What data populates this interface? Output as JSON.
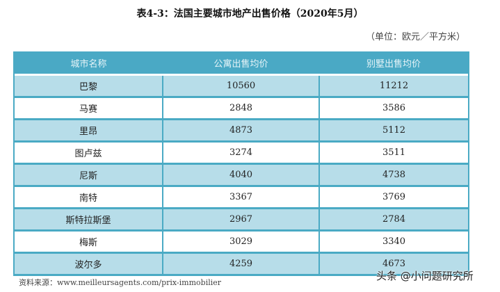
{
  "title": "表4-3：法国主要城市地产出售价格（2020年5月）",
  "unit": "（单位：欧元／平方米）",
  "table": {
    "headers": [
      "城市名称",
      "公寓出售均价",
      "别墅出售均价"
    ],
    "rows": [
      {
        "city": "巴黎",
        "apartment": "10560",
        "villa": "11212"
      },
      {
        "city": "马赛",
        "apartment": "2848",
        "villa": "3586"
      },
      {
        "city": "里昂",
        "apartment": "4873",
        "villa": "5112"
      },
      {
        "city": "图卢兹",
        "apartment": "3274",
        "villa": "3511"
      },
      {
        "city": "尼斯",
        "apartment": "4040",
        "villa": "4738"
      },
      {
        "city": "南特",
        "apartment": "3367",
        "villa": "3769"
      },
      {
        "city": "斯特拉斯堡",
        "apartment": "2967",
        "villa": "2784"
      },
      {
        "city": "梅斯",
        "apartment": "3029",
        "villa": "3340"
      },
      {
        "city": "波尔多",
        "apartment": "4259",
        "villa": "4673"
      }
    ]
  },
  "source": "资料来源：www.meilleursagents.com/prix-immobilier",
  "watermark": "头条 @小问题研究所",
  "colors": {
    "header_bg": "#4aa9c5",
    "row_highlight": "#b7dde9",
    "border": "#4aaac4"
  }
}
